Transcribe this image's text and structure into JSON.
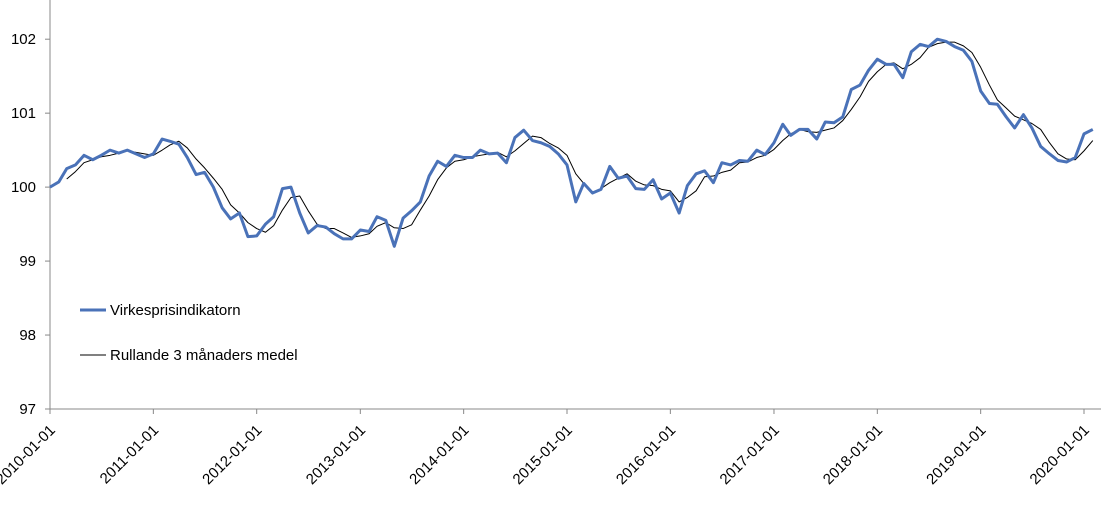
{
  "chart_data": {
    "type": "line",
    "x": [
      "2010-01-01",
      "2010-02-01",
      "2010-03-01",
      "2010-04-01",
      "2010-05-01",
      "2010-06-01",
      "2010-07-01",
      "2010-08-01",
      "2010-09-01",
      "2010-10-01",
      "2010-11-01",
      "2010-12-01",
      "2011-01-01",
      "2011-02-01",
      "2011-03-01",
      "2011-04-01",
      "2011-05-01",
      "2011-06-01",
      "2011-07-01",
      "2011-08-01",
      "2011-09-01",
      "2011-10-01",
      "2011-11-01",
      "2011-12-01",
      "2012-01-01",
      "2012-02-01",
      "2012-03-01",
      "2012-04-01",
      "2012-05-01",
      "2012-06-01",
      "2012-07-01",
      "2012-08-01",
      "2012-09-01",
      "2012-10-01",
      "2012-11-01",
      "2012-12-01",
      "2013-01-01",
      "2013-02-01",
      "2013-03-01",
      "2013-04-01",
      "2013-05-01",
      "2013-06-01",
      "2013-07-01",
      "2013-08-01",
      "2013-09-01",
      "2013-10-01",
      "2013-11-01",
      "2013-12-01",
      "2014-01-01",
      "2014-02-01",
      "2014-03-01",
      "2014-04-01",
      "2014-05-01",
      "2014-06-01",
      "2014-07-01",
      "2014-08-01",
      "2014-09-01",
      "2014-10-01",
      "2014-11-01",
      "2014-12-01",
      "2015-01-01",
      "2015-02-01",
      "2015-03-01",
      "2015-04-01",
      "2015-05-01",
      "2015-06-01",
      "2015-07-01",
      "2015-08-01",
      "2015-09-01",
      "2015-10-01",
      "2015-11-01",
      "2015-12-01",
      "2016-01-01",
      "2016-02-01",
      "2016-03-01",
      "2016-04-01",
      "2016-05-01",
      "2016-06-01",
      "2016-07-01",
      "2016-08-01",
      "2016-09-01",
      "2016-10-01",
      "2016-11-01",
      "2016-12-01",
      "2017-01-01",
      "2017-02-01",
      "2017-03-01",
      "2017-04-01",
      "2017-05-01",
      "2017-06-01",
      "2017-07-01",
      "2017-08-01",
      "2017-09-01",
      "2017-10-01",
      "2017-11-01",
      "2017-12-01",
      "2018-01-01",
      "2018-02-01",
      "2018-03-01",
      "2018-04-01",
      "2018-05-01",
      "2018-06-01",
      "2018-07-01",
      "2018-08-01",
      "2018-09-01",
      "2018-10-01",
      "2018-11-01",
      "2018-12-01",
      "2019-01-01",
      "2019-02-01",
      "2019-03-01",
      "2019-04-01",
      "2019-05-01",
      "2019-06-01",
      "2019-07-01",
      "2019-08-01",
      "2019-09-01",
      "2019-10-01",
      "2019-11-01",
      "2019-12-01",
      "2020-01-01",
      "2020-02-01"
    ],
    "series": [
      {
        "name": "Virkesprisindikatorn",
        "color": "#4a72b8",
        "width": 3,
        "values": [
          100.0,
          100.07,
          100.25,
          100.3,
          100.43,
          100.37,
          100.43,
          100.5,
          100.46,
          100.5,
          100.45,
          100.4,
          100.45,
          100.65,
          100.62,
          100.58,
          100.4,
          100.17,
          100.2,
          100.0,
          99.72,
          99.57,
          99.65,
          99.33,
          99.34,
          99.5,
          99.6,
          99.98,
          100.0,
          99.65,
          99.38,
          99.48,
          99.46,
          99.37,
          99.3,
          99.3,
          99.42,
          99.4,
          99.6,
          99.55,
          99.2,
          99.58,
          99.68,
          99.8,
          100.15,
          100.35,
          100.28,
          100.43,
          100.4,
          100.4,
          100.5,
          100.45,
          100.46,
          100.33,
          100.67,
          100.77,
          100.63,
          100.6,
          100.55,
          100.45,
          100.3,
          99.8,
          100.05,
          99.92,
          99.97,
          100.28,
          100.12,
          100.15,
          99.98,
          99.97,
          100.1,
          99.84,
          99.92,
          99.65,
          100.02,
          100.18,
          100.22,
          100.06,
          100.33,
          100.3,
          100.36,
          100.35,
          100.5,
          100.44,
          100.6,
          100.85,
          100.7,
          100.78,
          100.78,
          100.65,
          100.88,
          100.87,
          100.95,
          101.32,
          101.38,
          101.58,
          101.73,
          101.66,
          101.66,
          101.48,
          101.83,
          101.93,
          101.9,
          102.0,
          101.97,
          101.9,
          101.85,
          101.7,
          101.3,
          101.13,
          101.12,
          100.95,
          100.8,
          100.98,
          100.8,
          100.55,
          100.45,
          100.36,
          100.34,
          100.4,
          100.72,
          100.78
        ]
      },
      {
        "name": "Rullande 3 månaders medel",
        "color": "#000000",
        "width": 1,
        "values": [
          null,
          null,
          100.11,
          100.21,
          100.33,
          100.37,
          100.41,
          100.43,
          100.46,
          100.49,
          100.47,
          100.45,
          100.43,
          100.5,
          100.57,
          100.62,
          100.53,
          100.38,
          100.26,
          100.12,
          99.97,
          99.76,
          99.65,
          99.52,
          99.44,
          99.39,
          99.48,
          99.69,
          99.86,
          99.88,
          99.68,
          99.5,
          99.44,
          99.44,
          99.38,
          99.32,
          99.34,
          99.37,
          99.47,
          99.52,
          99.45,
          99.44,
          99.49,
          99.69,
          99.88,
          100.1,
          100.26,
          100.35,
          100.37,
          100.41,
          100.43,
          100.45,
          100.47,
          100.41,
          100.49,
          100.59,
          100.69,
          100.67,
          100.59,
          100.53,
          100.43,
          100.18,
          100.05,
          99.92,
          99.98,
          100.06,
          100.12,
          100.18,
          100.08,
          100.03,
          100.02,
          99.97,
          99.95,
          99.8,
          99.86,
          99.95,
          100.14,
          100.15,
          100.2,
          100.23,
          100.33,
          100.34,
          100.4,
          100.43,
          100.51,
          100.63,
          100.72,
          100.78,
          100.75,
          100.74,
          100.77,
          100.8,
          100.9,
          101.05,
          101.22,
          101.43,
          101.56,
          101.66,
          101.68,
          101.6,
          101.66,
          101.75,
          101.89,
          101.94,
          101.96,
          101.96,
          101.91,
          101.82,
          101.62,
          101.38,
          101.18,
          101.07,
          100.96,
          100.91,
          100.86,
          100.78,
          100.6,
          100.45,
          100.38,
          100.37,
          100.49,
          100.63
        ]
      }
    ],
    "xlim": [
      "2010-01-01",
      "2020-03-01"
    ],
    "xticks": [
      "2010-01-01",
      "2011-01-01",
      "2012-01-01",
      "2013-01-01",
      "2014-01-01",
      "2015-01-01",
      "2016-01-01",
      "2017-01-01",
      "2018-01-01",
      "2019-01-01",
      "2020-01-01"
    ],
    "ylim": [
      97,
      102.53
    ],
    "yticks": [
      97,
      98,
      99,
      100,
      101,
      102
    ],
    "grid": false,
    "legend": "left"
  }
}
